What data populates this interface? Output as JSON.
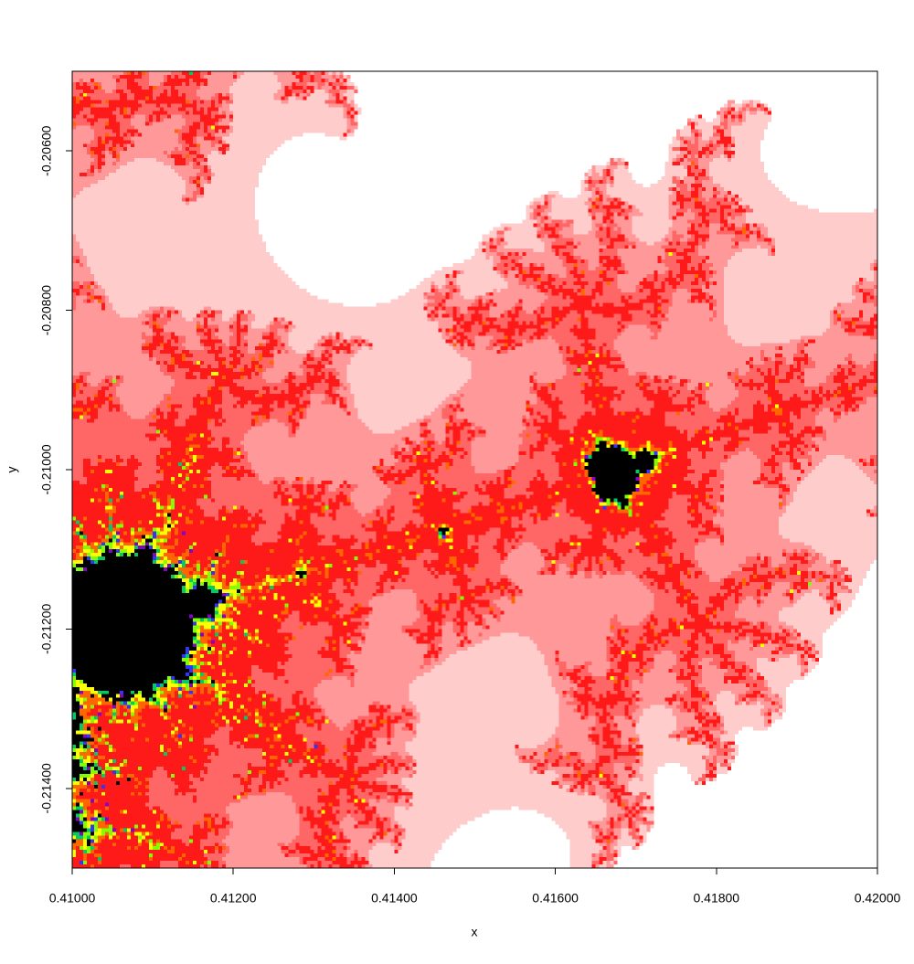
{
  "chart_data": {
    "type": "mandelbrot",
    "x_label": "x",
    "y_label": "y",
    "xlim": [
      0.41,
      0.42
    ],
    "ylim": [
      -0.215,
      -0.205
    ],
    "xticks": [
      {
        "value": 0.41,
        "label": "0.41000"
      },
      {
        "value": 0.412,
        "label": "0.41200"
      },
      {
        "value": 0.414,
        "label": "0.41400"
      },
      {
        "value": 0.416,
        "label": "0.41600"
      },
      {
        "value": 0.418,
        "label": "0.41800"
      },
      {
        "value": 0.42,
        "label": "0.42000"
      }
    ],
    "yticks": [
      {
        "value": -0.214,
        "label": "-0.21400"
      },
      {
        "value": -0.212,
        "label": "-0.21200"
      },
      {
        "value": -0.21,
        "label": "-0.21000"
      },
      {
        "value": -0.208,
        "label": "-0.20800"
      },
      {
        "value": -0.206,
        "label": "-0.20600"
      }
    ],
    "resolution": 220,
    "max_iter": 500,
    "interior_color": "#000000",
    "palette": [
      {
        "max_iter": 30,
        "color": "#FFFFFF"
      },
      {
        "max_iter": 38,
        "color": "#FFCCCC"
      },
      {
        "max_iter": 50,
        "color": "#FF9999"
      },
      {
        "max_iter": 70,
        "color": "#FF6666"
      },
      {
        "max_iter": 150,
        "color": "#FF1A1A"
      },
      {
        "max_iter": 200,
        "color": "#FF6600"
      },
      {
        "max_iter": 260,
        "color": "#FFFF00"
      },
      {
        "max_iter": 330,
        "color": "#80FF00"
      },
      {
        "max_iter": 400,
        "color": "#00CC66"
      },
      {
        "max_iter": 450,
        "color": "#3333FF"
      },
      {
        "max_iter": 499,
        "color": "#8800CC"
      }
    ]
  }
}
